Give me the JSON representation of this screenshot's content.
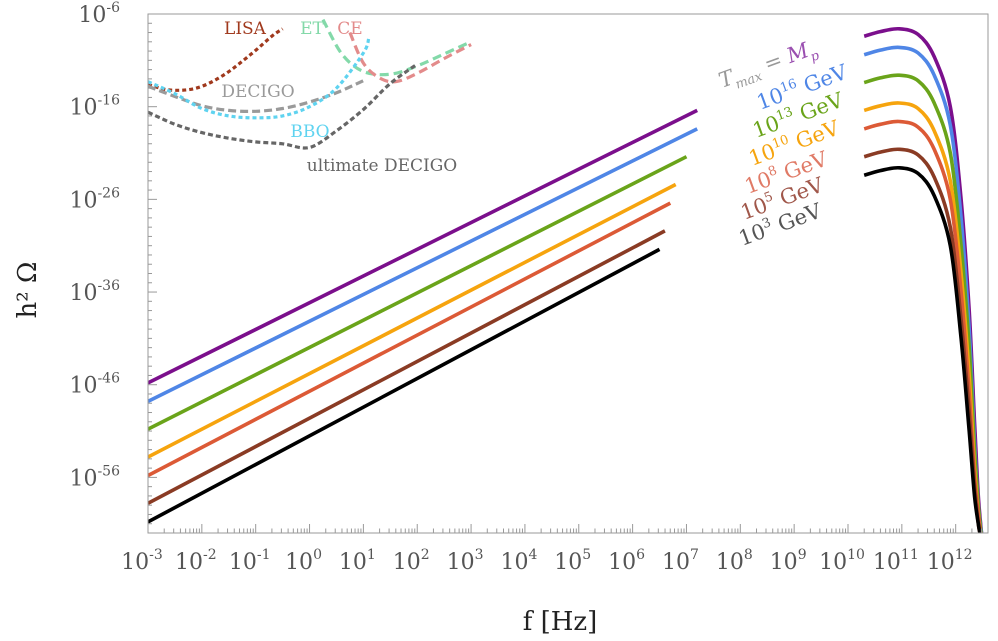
{
  "chart_data": {
    "type": "line",
    "title": "",
    "xlabel": "f [Hz]",
    "ylabel": "h² Ω",
    "xscale": "log",
    "yscale": "log",
    "xlim_log10": [
      -3,
      12.6
    ],
    "ylim_log10": [
      -62,
      -6
    ],
    "grid": false,
    "x_tick_labels": [
      {
        "base": "10",
        "exp": "-3",
        "v": -3
      },
      {
        "base": "10",
        "exp": "-2",
        "v": -2
      },
      {
        "base": "10",
        "exp": "-1",
        "v": -1
      },
      {
        "base": "10",
        "exp": "0",
        "v": 0
      },
      {
        "base": "10",
        "exp": "1",
        "v": 1
      },
      {
        "base": "10",
        "exp": "2",
        "v": 2
      },
      {
        "base": "10",
        "exp": "3",
        "v": 3
      },
      {
        "base": "10",
        "exp": "4",
        "v": 4
      },
      {
        "base": "10",
        "exp": "5",
        "v": 5
      },
      {
        "base": "10",
        "exp": "6",
        "v": 6
      },
      {
        "base": "10",
        "exp": "7",
        "v": 7
      },
      {
        "base": "10",
        "exp": "8",
        "v": 8
      },
      {
        "base": "10",
        "exp": "9",
        "v": 9
      },
      {
        "base": "10",
        "exp": "10",
        "v": 10
      },
      {
        "base": "10",
        "exp": "11",
        "v": 11
      },
      {
        "base": "10",
        "exp": "12",
        "v": 12
      }
    ],
    "y_tick_labels": [
      {
        "base": "10",
        "exp": "-6",
        "v": -6
      },
      {
        "base": "10",
        "exp": "-16",
        "v": -16
      },
      {
        "base": "10",
        "exp": "-26",
        "v": -26
      },
      {
        "base": "10",
        "exp": "-36",
        "v": -36
      },
      {
        "base": "10",
        "exp": "-46",
        "v": -46
      },
      {
        "base": "10",
        "exp": "-56",
        "v": -56
      }
    ],
    "series": [
      {
        "name": "T_max = M_p",
        "color": "#7b0f8c",
        "low_log10f": [
          -3,
          7.2
        ],
        "low_log10h": [
          -45.8,
          -16.4
        ],
        "high_log10f": [
          10.3,
          10.6,
          10.95,
          11.3,
          11.6,
          11.9,
          12.1,
          12.25,
          12.35,
          12.42,
          12.48
        ],
        "high_log10h": [
          -8.4,
          -7.9,
          -7.6,
          -8.2,
          -10.6,
          -16,
          -26,
          -38,
          -50,
          -58,
          -62
        ]
      },
      {
        "name": "10^16 GeV",
        "color": "#4f86e6",
        "low_log10f": [
          -3,
          7.2
        ],
        "low_log10h": [
          -47.8,
          -18.4
        ],
        "high_log10f": [
          10.3,
          10.6,
          10.95,
          11.3,
          11.6,
          11.9,
          12.1,
          12.25,
          12.35,
          12.42,
          12.48
        ],
        "high_log10h": [
          -10.4,
          -9.9,
          -9.6,
          -10.2,
          -12.6,
          -18,
          -28,
          -40,
          -52,
          -59,
          -62
        ]
      },
      {
        "name": "10^13 GeV",
        "color": "#6aa41a",
        "low_log10f": [
          -3,
          7.0
        ],
        "low_log10h": [
          -50.8,
          -21.4
        ],
        "high_log10f": [
          10.3,
          10.6,
          10.95,
          11.3,
          11.6,
          11.9,
          12.1,
          12.25,
          12.35,
          12.42,
          12.47
        ],
        "high_log10h": [
          -13.4,
          -12.9,
          -12.6,
          -13.2,
          -15.6,
          -21,
          -31,
          -42,
          -53,
          -59,
          -62
        ]
      },
      {
        "name": "10^10 GeV",
        "color": "#f6a40e",
        "low_log10f": [
          -3,
          6.8
        ],
        "low_log10h": [
          -53.8,
          -24.4
        ],
        "high_log10f": [
          10.3,
          10.6,
          10.95,
          11.3,
          11.6,
          11.9,
          12.1,
          12.25,
          12.35,
          12.42,
          12.46
        ],
        "high_log10h": [
          -16.4,
          -15.9,
          -15.6,
          -16.2,
          -18.6,
          -24,
          -34,
          -45,
          -55,
          -60,
          -62
        ]
      },
      {
        "name": "10^8 GeV",
        "color": "#dc5a36",
        "low_log10f": [
          -3,
          6.7
        ],
        "low_log10h": [
          -55.8,
          -26.4
        ],
        "high_log10f": [
          10.3,
          10.6,
          10.95,
          11.3,
          11.6,
          11.9,
          12.1,
          12.25,
          12.35,
          12.42,
          12.46
        ],
        "high_log10h": [
          -18.4,
          -17.9,
          -17.6,
          -18.2,
          -20.6,
          -26,
          -36,
          -47,
          -56,
          -60,
          -62
        ]
      },
      {
        "name": "10^5 GeV",
        "color": "#8a3b24",
        "low_log10f": [
          -3,
          6.6
        ],
        "low_log10h": [
          -58.8,
          -29.4
        ],
        "high_log10f": [
          10.3,
          10.6,
          10.95,
          11.3,
          11.6,
          11.9,
          12.1,
          12.25,
          12.35,
          12.42,
          12.45
        ],
        "high_log10h": [
          -21.4,
          -20.9,
          -20.6,
          -21.2,
          -23.6,
          -29,
          -39,
          -49,
          -57,
          -61,
          -62
        ]
      },
      {
        "name": "10^3 GeV",
        "color": "#000000",
        "low_log10f": [
          -3,
          6.5
        ],
        "low_log10h": [
          -60.8,
          -31.4
        ],
        "high_log10f": [
          10.3,
          10.6,
          10.95,
          11.3,
          11.6,
          11.9,
          12.1,
          12.25,
          12.35,
          12.42,
          12.45
        ],
        "high_log10h": [
          -23.4,
          -22.9,
          -22.6,
          -23.2,
          -25.6,
          -31,
          -41,
          -51,
          -58,
          -61,
          -62
        ]
      }
    ],
    "sensitivity_curves": [
      {
        "name": "LISA",
        "color": "#a0391d",
        "dash": "4,3",
        "log10f": [
          -3,
          -2.6,
          -2.1,
          -1.6,
          -1.1,
          -0.7,
          -0.5
        ],
        "log10h": [
          -13.6,
          -14.2,
          -14.0,
          -12.6,
          -10.4,
          -8.4,
          -7.6
        ]
      },
      {
        "name": "ET",
        "color": "#83d9a9",
        "dash": "9,5",
        "log10f": [
          0.25,
          0.6,
          1.0,
          1.5,
          2.0,
          2.5,
          3.0
        ],
        "log10h": [
          -6.6,
          -10.3,
          -12.2,
          -12.5,
          -11.6,
          -10.3,
          -9.0
        ]
      },
      {
        "name": "CE",
        "color": "#e38b8b",
        "dash": "9,5",
        "log10f": [
          0.75,
          1.0,
          1.3,
          1.6,
          2.0,
          2.5,
          3.0
        ],
        "log10h": [
          -8.0,
          -11.3,
          -12.9,
          -13.3,
          -12.4,
          -10.8,
          -9.3
        ]
      },
      {
        "name": "DECIGO",
        "color": "#9a9a9a",
        "dash": "8,4",
        "log10f": [
          -3,
          -2.5,
          -2.0,
          -1.5,
          -1.0,
          -0.5,
          0.0,
          0.5,
          1.0
        ],
        "log10h": [
          -13.8,
          -14.9,
          -15.9,
          -16.4,
          -16.5,
          -16.2,
          -15.5,
          -14.5,
          -13.2
        ]
      },
      {
        "name": "BBO",
        "color": "#5fd3f0",
        "dash": "4,3",
        "log10f": [
          -3,
          -2.5,
          -2.0,
          -1.5,
          -1.0,
          -0.5,
          0.0,
          0.5,
          1.0,
          1.1
        ],
        "log10h": [
          -13.3,
          -14.6,
          -16.2,
          -17.0,
          -17.2,
          -17.0,
          -16.0,
          -14.0,
          -10.2,
          -8.6
        ]
      },
      {
        "name": "ultimate DECIGO",
        "color": "#666666",
        "dash": "5,3",
        "log10f": [
          -3,
          -2.5,
          -2.0,
          -1.5,
          -1.0,
          -0.5,
          0.0,
          0.5,
          1.0,
          1.5,
          2.0
        ],
        "log10h": [
          -16.6,
          -17.9,
          -18.8,
          -19.4,
          -19.8,
          -20.0,
          -20.4,
          -18.6,
          -16.3,
          -13.5,
          -11.4
        ]
      }
    ],
    "annotations": [
      {
        "text": "LISA",
        "color": "#a0391d"
      },
      {
        "text": "ET",
        "color": "#83d9a9"
      },
      {
        "text": "CE",
        "color": "#e38b8b"
      },
      {
        "text": "DECIGO",
        "color": "#9a9a9a"
      },
      {
        "text": "BBO",
        "color": "#5fd3f0"
      },
      {
        "text": "ultimate DECIGO",
        "color": "#666666"
      }
    ],
    "legend_labels": [
      {
        "text": "10^3 GeV",
        "color": "#555555"
      },
      {
        "text": "10^5 GeV",
        "color": "#a0574a"
      },
      {
        "text": "10^8 GeV",
        "color": "#e07a66"
      },
      {
        "text": "10^10 GeV",
        "color": "#f6a40e"
      },
      {
        "text": "10^13 GeV",
        "color": "#6aa41a"
      },
      {
        "text": "10^16 GeV",
        "color": "#4f86e6"
      },
      {
        "text": "T_max = M_p",
        "color": "#999999"
      }
    ]
  }
}
